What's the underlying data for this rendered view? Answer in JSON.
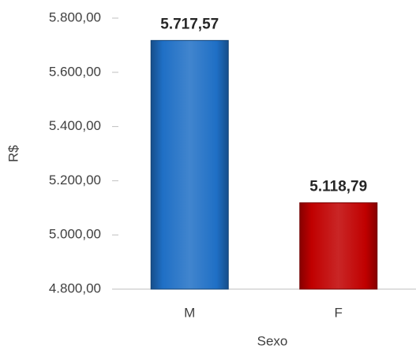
{
  "chart_data": {
    "type": "bar",
    "categories": [
      "M",
      "F"
    ],
    "values": [
      5717.57,
      5118.79
    ],
    "value_labels": [
      "5.717,57",
      "5.118,79"
    ],
    "colors": [
      "#1f6fc5",
      "#c00000"
    ],
    "ylim": [
      4800,
      5800
    ],
    "yticks": [
      {
        "value": 4800,
        "label": "4.800,00"
      },
      {
        "value": 5000,
        "label": "5.000,00"
      },
      {
        "value": 5200,
        "label": "5.200,00"
      },
      {
        "value": 5400,
        "label": "5.400,00"
      },
      {
        "value": 5600,
        "label": "5.600,00"
      },
      {
        "value": 5800,
        "label": "5.800,00"
      }
    ],
    "ylabel": "R$",
    "xlabel": "Sexo"
  }
}
